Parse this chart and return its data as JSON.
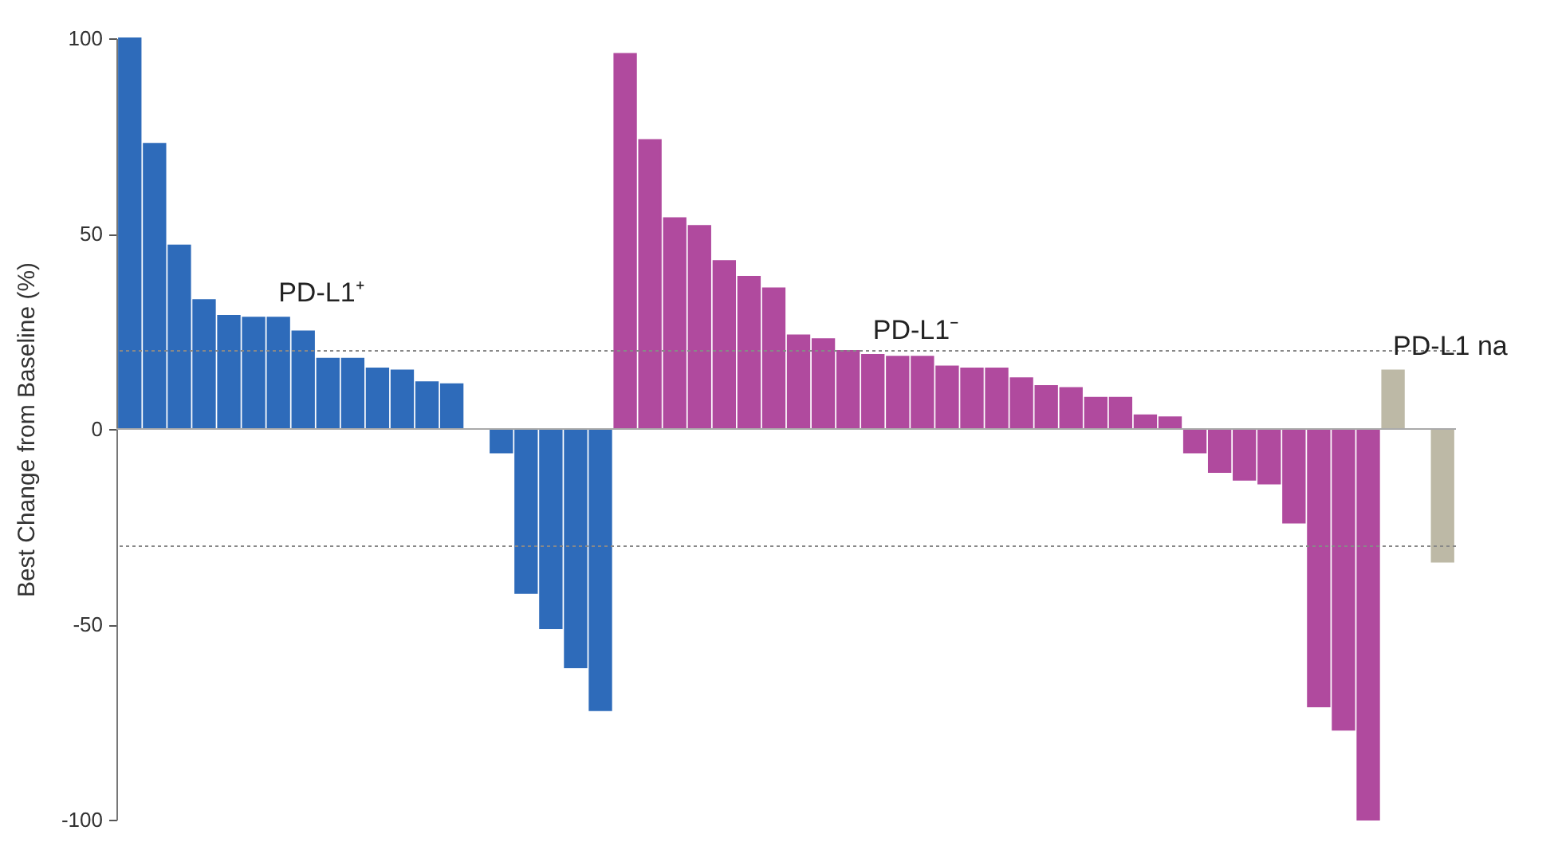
{
  "chart_data": {
    "type": "bar",
    "ylabel": "Best Change from Baseline (%)",
    "categories": [
      null,
      null,
      null,
      null,
      null,
      null,
      null,
      null,
      null,
      null,
      null,
      null,
      null,
      null,
      null,
      null,
      null,
      null,
      null,
      null,
      null,
      null,
      null,
      null,
      null,
      null,
      null,
      null,
      null,
      null,
      null,
      null,
      null,
      null,
      null,
      null,
      null,
      null,
      null,
      null,
      null,
      null,
      null,
      null,
      null,
      null,
      null,
      null,
      null,
      null,
      null,
      null,
      null,
      null
    ],
    "series": [
      {
        "name": "PD-L1⁺",
        "color": "#2e6bba",
        "values": [
          100,
          73,
          47,
          33,
          29,
          28.5,
          28.5,
          25,
          18,
          18,
          15.5,
          15,
          12,
          11.5,
          0,
          -6,
          -42,
          -51,
          -61,
          -72,
          null,
          null,
          null,
          null,
          null,
          null,
          null,
          null,
          null,
          null,
          null,
          null,
          null,
          null,
          null,
          null,
          null,
          null,
          null,
          null,
          null,
          null,
          null,
          null,
          null,
          null,
          null,
          null,
          null,
          null,
          null,
          null,
          null,
          null
        ]
      },
      {
        "name": "PD-L1⁻",
        "color": "#b04a9e",
        "values": [
          null,
          null,
          null,
          null,
          null,
          null,
          null,
          null,
          null,
          null,
          null,
          null,
          null,
          null,
          null,
          null,
          null,
          null,
          null,
          null,
          96,
          74,
          54,
          52,
          43,
          39,
          36,
          24,
          23,
          20,
          19,
          18.5,
          18.5,
          16,
          15.5,
          15.5,
          13,
          11,
          10.5,
          8,
          8,
          3.5,
          3,
          -6,
          -11,
          -13,
          -14,
          -24,
          -71,
          -77,
          -100,
          null,
          null,
          null
        ]
      },
      {
        "name": "PD-L1 na",
        "color": "#bdb9a6",
        "values": [
          null,
          null,
          null,
          null,
          null,
          null,
          null,
          null,
          null,
          null,
          null,
          null,
          null,
          null,
          null,
          null,
          null,
          null,
          null,
          null,
          null,
          null,
          null,
          null,
          null,
          null,
          null,
          null,
          null,
          null,
          null,
          null,
          null,
          null,
          null,
          null,
          null,
          null,
          null,
          null,
          null,
          null,
          null,
          null,
          null,
          null,
          null,
          null,
          null,
          null,
          null,
          15,
          0,
          -34
        ]
      }
    ],
    "ylim": [
      -100,
      100
    ],
    "yticks": [
      -100,
      -50,
      0,
      50,
      100
    ],
    "tick_labels": "y",
    "grid": false,
    "ref_lines": [
      {
        "axis": "y",
        "value": 20,
        "line_style": "dotted",
        "color": "#888888"
      },
      {
        "axis": "y",
        "value": -30,
        "line_style": "dotted",
        "color": "#888888"
      },
      {
        "axis": "y",
        "value": 0,
        "line_style": "solid",
        "color": "#aaaaaa"
      }
    ]
  }
}
